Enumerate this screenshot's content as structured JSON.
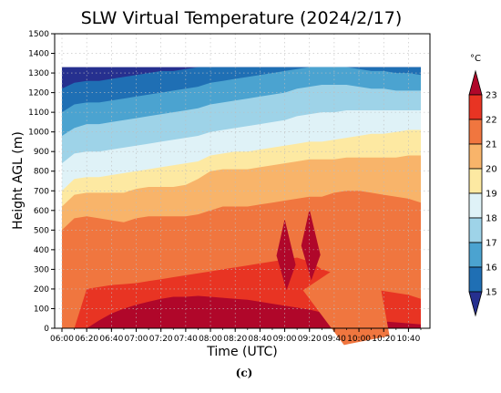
{
  "chart_data": {
    "type": "heatmap",
    "title": "SLW Virtual Temperature (2024/2/17)",
    "xlabel": "Time (UTC)",
    "ylabel": "Height AGL (m)",
    "caption": "(c)",
    "xlim": [
      "06:00",
      "10:50"
    ],
    "ylim": [
      0,
      1500
    ],
    "grid": true,
    "x_ticks": [
      "06:00",
      "06:20",
      "06:40",
      "07:00",
      "07:20",
      "07:40",
      "08:00",
      "08:20",
      "08:40",
      "09:00",
      "09:20",
      "09:40",
      "10:00",
      "10:20",
      "10:40"
    ],
    "y_ticks": [
      0,
      100,
      200,
      300,
      400,
      500,
      600,
      700,
      800,
      900,
      1000,
      1100,
      1200,
      1300,
      1400,
      1500
    ],
    "colorbar": {
      "unit": "°C",
      "levels": [
        15,
        16,
        17,
        18,
        19,
        20,
        21,
        22,
        23
      ],
      "colors": [
        "#26308f",
        "#1f6fb4",
        "#4ba3d0",
        "#9ed3e8",
        "#dff2f7",
        "#fde9a2",
        "#f8b46a",
        "#f0763f",
        "#e83423",
        "#b0072a"
      ]
    },
    "times": [
      "06:00",
      "06:10",
      "06:20",
      "06:30",
      "06:40",
      "06:50",
      "07:00",
      "07:10",
      "07:20",
      "07:30",
      "07:40",
      "07:50",
      "08:00",
      "08:10",
      "08:20",
      "08:30",
      "08:40",
      "08:50",
      "09:00",
      "09:10",
      "09:20",
      "09:30",
      "09:40",
      "09:50",
      "10:00",
      "10:10",
      "10:20",
      "10:30",
      "10:40",
      "10:50"
    ],
    "data_top_height": 1330,
    "isotherm_heights_m": {
      "23": [
        0,
        0,
        0,
        40,
        75,
        100,
        120,
        135,
        150,
        160,
        160,
        165,
        160,
        155,
        150,
        145,
        135,
        125,
        115,
        105,
        95,
        80,
        70,
        60,
        50,
        40,
        35,
        30,
        25,
        20
      ],
      "22": [
        0,
        0,
        200,
        210,
        220,
        225,
        230,
        240,
        250,
        260,
        270,
        280,
        290,
        300,
        310,
        320,
        330,
        340,
        350,
        360,
        340,
        300,
        280,
        240,
        220,
        200,
        190,
        180,
        170,
        150
      ],
      "21": [
        500,
        560,
        570,
        560,
        550,
        540,
        560,
        570,
        570,
        570,
        570,
        580,
        600,
        620,
        620,
        620,
        630,
        640,
        650,
        660,
        670,
        670,
        690,
        700,
        700,
        690,
        680,
        670,
        660,
        640
      ],
      "20": [
        620,
        680,
        690,
        690,
        690,
        690,
        710,
        720,
        720,
        720,
        730,
        760,
        800,
        810,
        810,
        810,
        820,
        830,
        840,
        850,
        860,
        860,
        860,
        870,
        870,
        870,
        870,
        870,
        880,
        880
      ],
      "19": [
        700,
        760,
        770,
        770,
        780,
        790,
        800,
        810,
        820,
        830,
        840,
        850,
        880,
        890,
        900,
        900,
        910,
        920,
        930,
        940,
        950,
        950,
        960,
        970,
        980,
        990,
        990,
        1000,
        1010,
        1010
      ],
      "18": [
        840,
        890,
        900,
        900,
        910,
        920,
        930,
        940,
        950,
        960,
        970,
        980,
        1000,
        1010,
        1020,
        1030,
        1040,
        1050,
        1060,
        1080,
        1090,
        1100,
        1100,
        1110,
        1110,
        1110,
        1110,
        1110,
        1110,
        1110
      ],
      "17": [
        980,
        1020,
        1040,
        1040,
        1050,
        1060,
        1070,
        1080,
        1090,
        1100,
        1110,
        1120,
        1140,
        1150,
        1160,
        1170,
        1180,
        1190,
        1200,
        1220,
        1230,
        1240,
        1240,
        1240,
        1230,
        1220,
        1220,
        1210,
        1210,
        1210
      ],
      "16": [
        1100,
        1140,
        1150,
        1150,
        1160,
        1170,
        1180,
        1190,
        1200,
        1210,
        1220,
        1230,
        1250,
        1260,
        1270,
        1280,
        1290,
        1300,
        1310,
        1320,
        1330,
        1330,
        1330,
        1330,
        1320,
        1310,
        1310,
        1300,
        1300,
        1290
      ],
      "15": [
        1220,
        1250,
        1260,
        1260,
        1270,
        1280,
        1290,
        1300,
        1310,
        1310,
        1320,
        1330,
        1330,
        1330,
        1330,
        1330,
        1330,
        1330,
        1330,
        1330,
        1330,
        1330,
        1330,
        1330,
        1330,
        1330,
        1330,
        1330,
        1330,
        1330
      ]
    },
    "warm_pockets_above_23C": [
      {
        "time": "09:00",
        "height_m": 370
      },
      {
        "time": "09:20",
        "height_m": 420
      }
    ],
    "cool_pocket_below_22C": {
      "time": "10:10",
      "height_m": 240
    }
  }
}
